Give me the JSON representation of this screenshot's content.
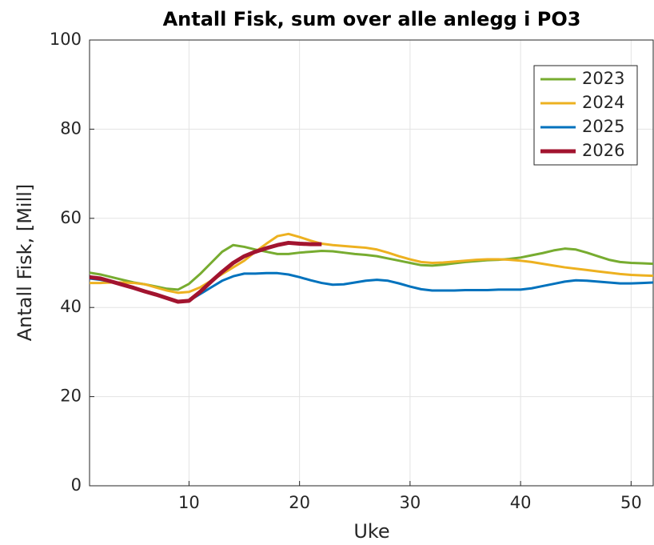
{
  "chart_data": {
    "type": "line",
    "title": "Antall Fisk, sum over alle anlegg i PO3",
    "xlabel": "Uke",
    "ylabel": "Antall Fisk, [Mill]",
    "x": [
      1,
      2,
      3,
      4,
      5,
      6,
      7,
      8,
      9,
      10,
      11,
      12,
      13,
      14,
      15,
      16,
      17,
      18,
      19,
      20,
      21,
      22,
      23,
      24,
      25,
      26,
      27,
      28,
      29,
      30,
      31,
      32,
      33,
      34,
      35,
      36,
      37,
      38,
      39,
      40,
      41,
      42,
      43,
      44,
      45,
      46,
      47,
      48,
      49,
      50,
      51,
      52
    ],
    "series": [
      {
        "name": "2023",
        "color": "#77ac30",
        "values": [
          47.8,
          47.4,
          46.8,
          46.2,
          45.6,
          45.2,
          44.7,
          44.2,
          44.0,
          45.3,
          47.5,
          50,
          52.5,
          54,
          53.6,
          53,
          52.5,
          52,
          52,
          52.3,
          52.5,
          52.7,
          52.6,
          52.3,
          52,
          51.8,
          51.5,
          51,
          50.5,
          50,
          49.5,
          49.4,
          49.6,
          49.9,
          50.2,
          50.4,
          50.6,
          50.7,
          50.9,
          51.2,
          51.7,
          52.2,
          52.8,
          53.2,
          53,
          52.3,
          51.5,
          50.7,
          50.2,
          50,
          49.9,
          49.8
        ]
      },
      {
        "name": "2024",
        "color": "#edb120",
        "values": [
          45.5,
          45.5,
          45.6,
          45.6,
          45.5,
          45.2,
          44.5,
          43.8,
          43.3,
          43.5,
          44.5,
          46,
          47.5,
          49,
          50.5,
          52.5,
          54.3,
          56,
          56.5,
          55.8,
          55,
          54.3,
          54,
          53.8,
          53.6,
          53.4,
          53,
          52.3,
          51.5,
          50.8,
          50.2,
          50,
          50.1,
          50.3,
          50.5,
          50.7,
          50.8,
          50.8,
          50.7,
          50.5,
          50.2,
          49.8,
          49.4,
          49,
          48.7,
          48.4,
          48.1,
          47.8,
          47.5,
          47.3,
          47.2,
          47.1
        ]
      },
      {
        "name": "2025",
        "color": "#0072bd",
        "values": [
          46.5,
          46.2,
          45.7,
          45,
          44.4,
          43.7,
          43,
          42.2,
          41.4,
          41.5,
          43,
          44.5,
          46,
          47,
          47.6,
          47.6,
          47.7,
          47.7,
          47.4,
          46.8,
          46.1,
          45.5,
          45.1,
          45.2,
          45.6,
          46,
          46.2,
          46,
          45.4,
          44.7,
          44.1,
          43.8,
          43.8,
          43.8,
          43.9,
          43.9,
          43.9,
          44,
          44,
          44,
          44.3,
          44.8,
          45.3,
          45.8,
          46.1,
          46,
          45.8,
          45.6,
          45.4,
          45.4,
          45.5,
          45.6
        ]
      },
      {
        "name": "2026",
        "color": "#a2142f",
        "values": [
          46.8,
          46.5,
          45.8,
          45.1,
          44.4,
          43.6,
          42.9,
          42.1,
          41.3,
          41.5,
          43.5,
          45.8,
          48,
          50,
          51.5,
          52.5,
          53.3,
          54,
          54.5,
          54.3,
          54.2,
          54.2,
          null,
          null,
          null,
          null,
          null,
          null,
          null,
          null,
          null,
          null,
          null,
          null,
          null,
          null,
          null,
          null,
          null,
          null,
          null,
          null,
          null,
          null,
          null,
          null,
          null,
          null,
          null,
          null,
          null,
          null
        ]
      }
    ],
    "xlim": [
      1,
      52
    ],
    "xticks": [
      10,
      20,
      30,
      40,
      50
    ],
    "ylim": [
      0,
      100
    ],
    "yticks": [
      0,
      20,
      40,
      60,
      80,
      100
    ],
    "grid": true,
    "legend": "northeast"
  }
}
